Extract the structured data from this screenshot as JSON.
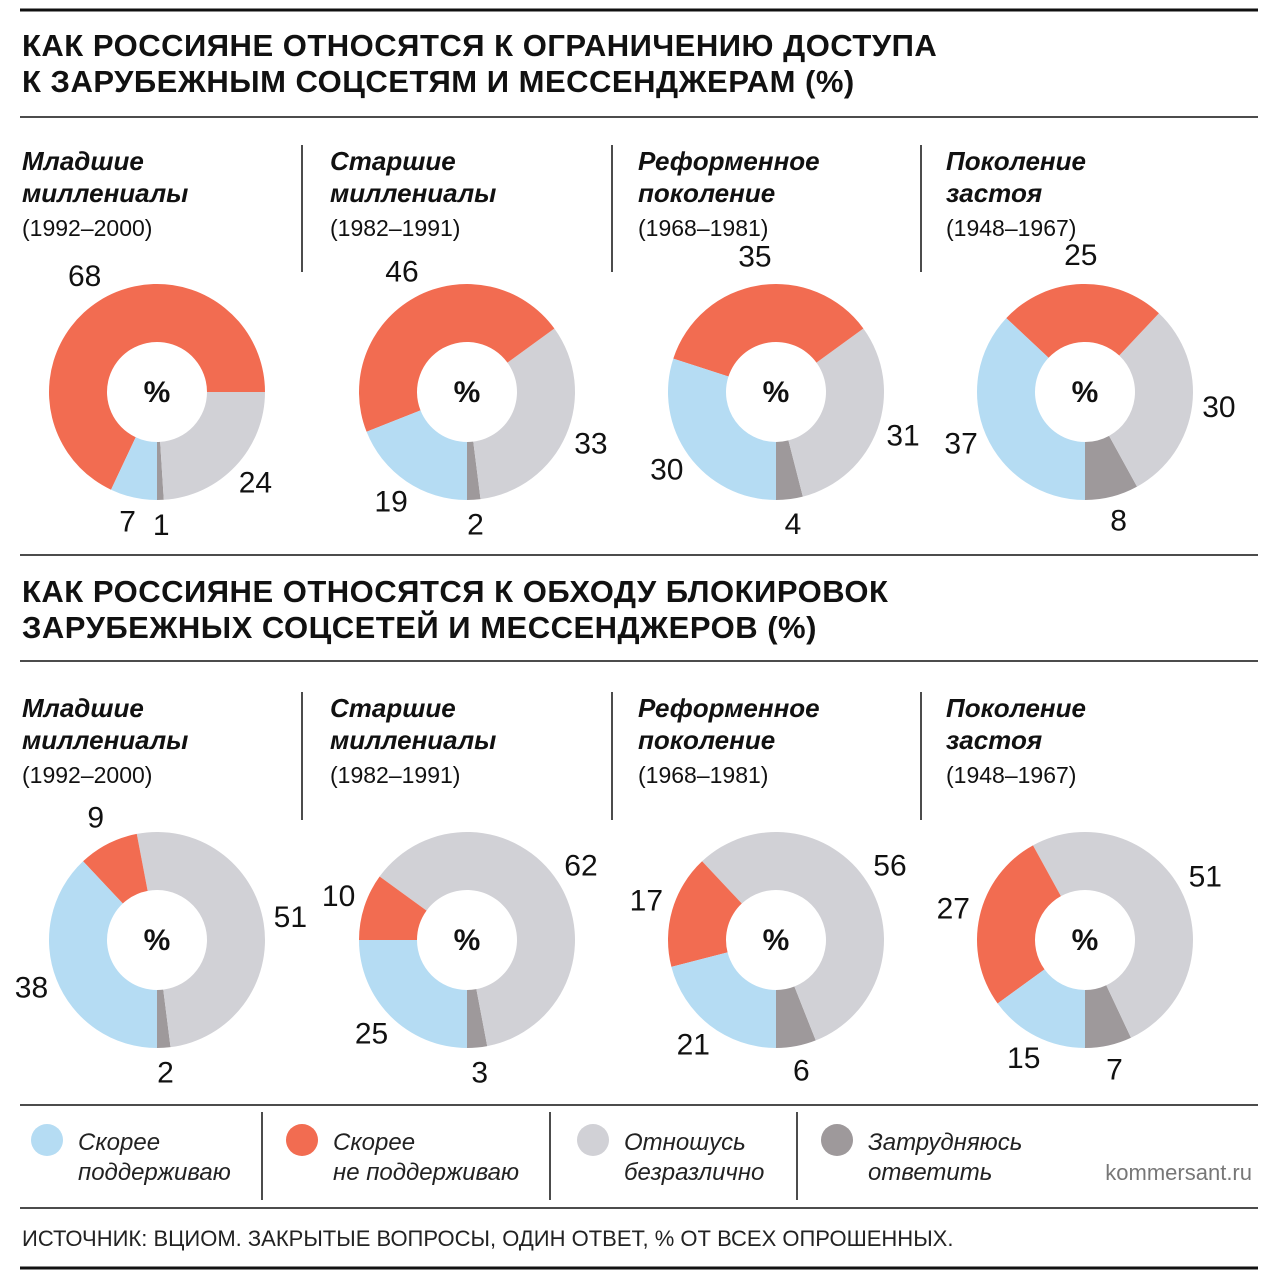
{
  "headings": [
    "КАК РОССИЯНЕ ОТНОСЯТСЯ К ОГРАНИЧЕНИЮ ДОСТУПА\nК ЗАРУБЕЖНЫМ СОЦСЕТЯМ И МЕССЕНДЖЕРАМ (%)",
    "КАК РОССИЯНЕ ОТНОСЯТСЯ К ОБХОДУ БЛОКИРОВОК\nЗАРУБЕЖНЫХ СОЦСЕТЕЙ И МЕССЕНДЖЕРОВ (%)"
  ],
  "legend": [
    {
      "name": "Скорее\nподдерживаю",
      "color": "#b5dcf3"
    },
    {
      "name": "Скорее\nне поддерживаю",
      "color": "#f26c51"
    },
    {
      "name": "Отношусь\nбезразлично",
      "color": "#d1d1d6"
    },
    {
      "name": "Затрудняюсь\nответить",
      "color": "#9e999b"
    }
  ],
  "brand": "kommersant.ru",
  "source": "ИСТОЧНИК: ВЦИОМ. ЗАКРЫТЫЕ ВОПРОСЫ, ОДИН ОТВЕТ, % ОТ ВСЕХ ОПРОШЕННЫХ.",
  "chart_data": [
    {
      "type": "donut",
      "title": "Младшие\nмиллениалы",
      "subtitle": "(1992–2000)",
      "center_label": "%",
      "values": [
        7,
        68,
        24,
        1
      ]
    },
    {
      "type": "donut",
      "title": "Старшие\nмиллениалы",
      "subtitle": "(1982–1991)",
      "center_label": "%",
      "values": [
        19,
        46,
        33,
        2
      ]
    },
    {
      "type": "donut",
      "title": "Реформенное\nпоколение",
      "subtitle": "(1968–1981)",
      "center_label": "%",
      "values": [
        30,
        35,
        31,
        4
      ]
    },
    {
      "type": "donut",
      "title": "Поколение\nзастоя",
      "subtitle": "(1948–1967)",
      "center_label": "%",
      "values": [
        37,
        25,
        30,
        8
      ]
    },
    {
      "type": "donut",
      "title": "Младшие\nмиллениалы",
      "subtitle": "(1992–2000)",
      "center_label": "%",
      "values": [
        38,
        9,
        51,
        2
      ]
    },
    {
      "type": "donut",
      "title": "Старшие\nмиллениалы",
      "subtitle": "(1982–1991)",
      "center_label": "%",
      "values": [
        25,
        10,
        62,
        3
      ]
    },
    {
      "type": "donut",
      "title": "Реформенное\nпоколение",
      "subtitle": "(1968–1981)",
      "center_label": "%",
      "values": [
        21,
        17,
        56,
        6
      ]
    },
    {
      "type": "donut",
      "title": "Поколение\nзастоя",
      "subtitle": "(1948–1967)",
      "center_label": "%",
      "values": [
        15,
        27,
        51,
        7
      ]
    }
  ]
}
